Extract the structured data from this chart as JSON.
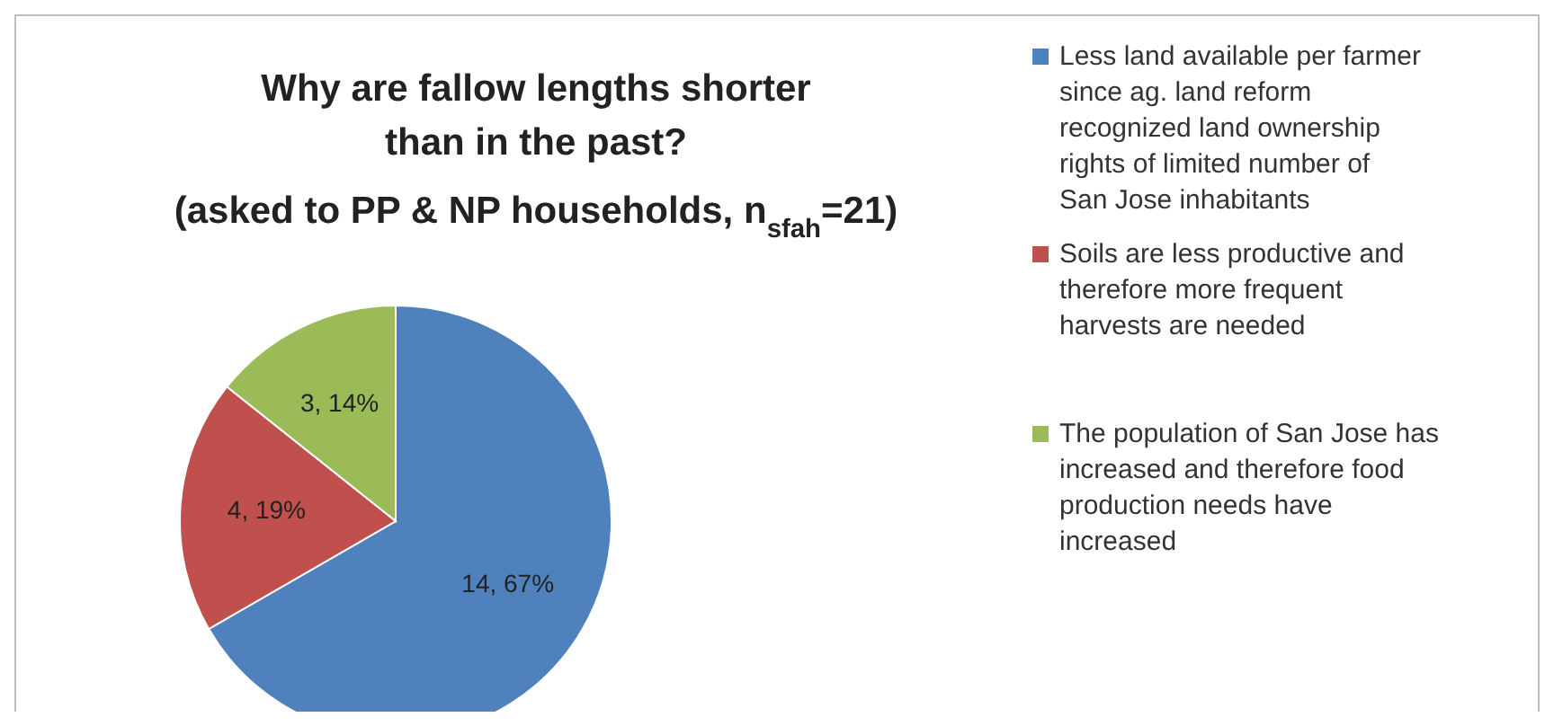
{
  "chart_data": {
    "type": "pie",
    "title": "Why are fallow lengths shorter than in the past?",
    "subtitle": "(asked to PP & NP households, n$_{sfah}$=21)",
    "categories": [
      "Less land available per farmer since ag. land reform recognized land ownership rights of limited number of San Jose inhabitants",
      "Soils are less productive and therefore more frequent harvests are needed",
      "The population of San Jose has increased and therefore food production needs have increased"
    ],
    "values": [
      14,
      4,
      3
    ],
    "colors": [
      "#4f81bd",
      "#c0504d",
      "#9bbb59"
    ],
    "value_labels": [
      "14, 67%",
      "4, 19%",
      "3, 14%"
    ],
    "legend": "right"
  }
}
